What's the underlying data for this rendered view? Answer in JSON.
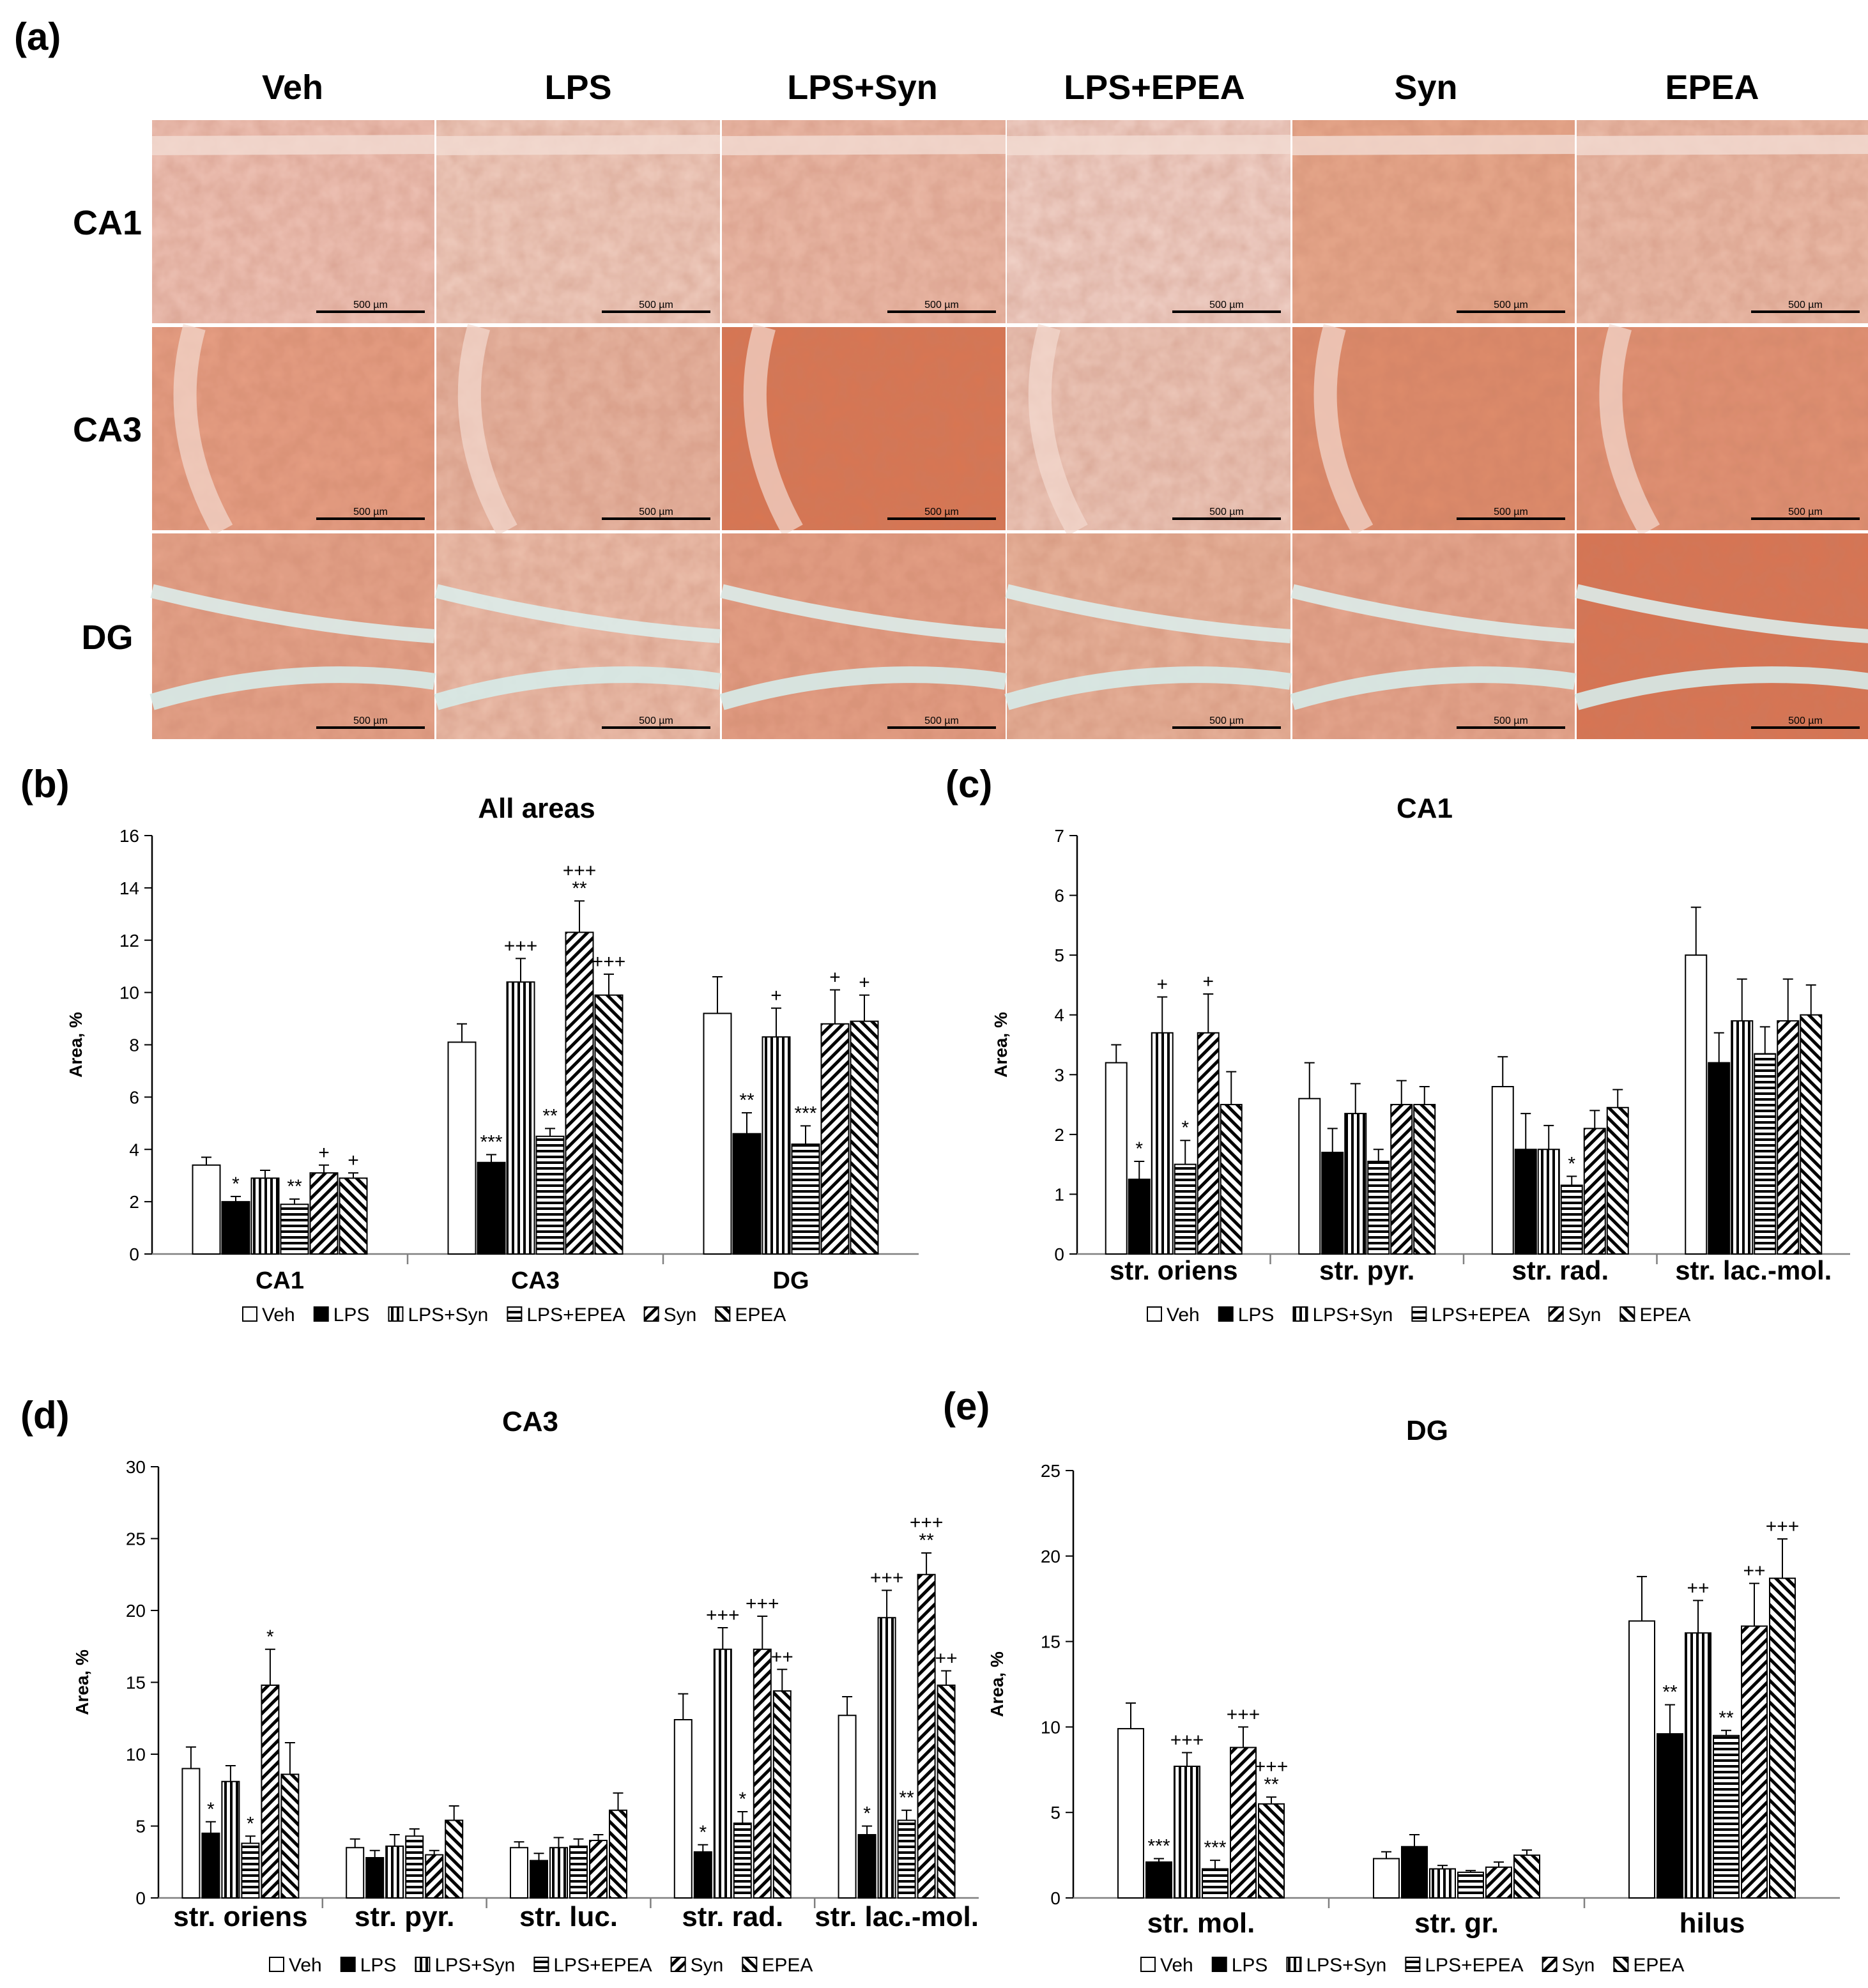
{
  "panel_a": {
    "label": "(a)",
    "columns": [
      "Veh",
      "LPS",
      "LPS+Syn",
      "LPS+EPEA",
      "Syn",
      "EPEA"
    ],
    "rows": [
      "CA1",
      "CA3",
      "DG"
    ],
    "scale_bar": "500 µm",
    "tissue_colors": {
      "CA1": [
        "#efc3b6",
        "#f0cdbf",
        "#ecbba9",
        "#f1d2c8",
        "#e8a98d",
        "#ecbdaa"
      ],
      "CA3": [
        "#e79f84",
        "#e8b6a2",
        "#d97652",
        "#edc8ba",
        "#df8c6b",
        "#e29274"
      ],
      "DG": [
        "#e6a48b",
        "#edc0ad",
        "#e5a086",
        "#e8b39b",
        "#e6a78f",
        "#d97452"
      ]
    }
  },
  "legend": [
    "Veh",
    "LPS",
    "LPS+Syn",
    "LPS+EPEA",
    "Syn",
    "EPEA"
  ],
  "colors": {
    "ink": "#000000",
    "axis": "#808080",
    "white": "#ffffff"
  },
  "chart_data": [
    {
      "panel": "(b)",
      "type": "bar",
      "title": "All areas",
      "ylabel": "Area, %",
      "ylim": [
        0,
        16
      ],
      "yticks": [
        0,
        2,
        4,
        6,
        8,
        10,
        12,
        14,
        16
      ],
      "categories": [
        "CA1",
        "CA3",
        "DG"
      ],
      "series": [
        {
          "name": "Veh",
          "values": [
            3.4,
            8.1,
            9.2
          ],
          "errors": [
            0.3,
            0.7,
            1.4
          ]
        },
        {
          "name": "LPS",
          "values": [
            2.0,
            3.5,
            4.6
          ],
          "errors": [
            0.2,
            0.3,
            0.8
          ]
        },
        {
          "name": "LPS+Syn",
          "values": [
            2.9,
            10.4,
            8.3
          ],
          "errors": [
            0.3,
            0.9,
            1.1
          ]
        },
        {
          "name": "LPS+EPEA",
          "values": [
            1.9,
            4.5,
            4.2
          ],
          "errors": [
            0.2,
            0.3,
            0.7
          ]
        },
        {
          "name": "Syn",
          "values": [
            3.1,
            12.3,
            8.8
          ],
          "errors": [
            0.3,
            1.2,
            1.3
          ]
        },
        {
          "name": "EPEA",
          "values": [
            2.9,
            9.9,
            8.9
          ],
          "errors": [
            0.2,
            0.8,
            1.0
          ]
        }
      ],
      "annotations": [
        [
          [
            "",
            "*",
            "",
            "**",
            "+",
            "+"
          ],
          [
            "",
            "***",
            "+++",
            "**",
            "+++|**",
            "+++"
          ],
          [
            "",
            "**",
            "+",
            "***",
            "+",
            "+"
          ]
        ]
      ]
    },
    {
      "panel": "(c)",
      "type": "bar",
      "title": "CA1",
      "ylabel": "Area, %",
      "ylim": [
        0,
        7
      ],
      "yticks": [
        0,
        1,
        2,
        3,
        4,
        5,
        6,
        7
      ],
      "categories": [
        "str. oriens",
        "str. pyr.",
        "str. rad.",
        "str. lac.-mol."
      ],
      "series": [
        {
          "name": "Veh",
          "values": [
            3.2,
            2.6,
            2.8,
            5.0
          ],
          "errors": [
            0.3,
            0.6,
            0.5,
            0.8
          ]
        },
        {
          "name": "LPS",
          "values": [
            1.25,
            1.7,
            1.75,
            3.2
          ],
          "errors": [
            0.3,
            0.4,
            0.6,
            0.5
          ]
        },
        {
          "name": "LPS+Syn",
          "values": [
            3.7,
            2.35,
            1.75,
            3.9
          ],
          "errors": [
            0.6,
            0.5,
            0.4,
            0.7
          ]
        },
        {
          "name": "LPS+EPEA",
          "values": [
            1.5,
            1.55,
            1.15,
            3.35
          ],
          "errors": [
            0.4,
            0.2,
            0.15,
            0.45
          ]
        },
        {
          "name": "Syn",
          "values": [
            3.7,
            2.5,
            2.1,
            3.9
          ],
          "errors": [
            0.65,
            0.4,
            0.3,
            0.7
          ]
        },
        {
          "name": "EPEA",
          "values": [
            2.5,
            2.5,
            2.45,
            4.0
          ],
          "errors": [
            0.55,
            0.3,
            0.3,
            0.5
          ]
        }
      ],
      "annotations": [
        [
          [
            "",
            "*",
            "+",
            "*",
            "+",
            ""
          ],
          [
            "",
            "",
            "",
            "",
            "",
            ""
          ],
          [
            "",
            "",
            "",
            "*",
            "",
            ""
          ],
          [
            "",
            "",
            "",
            "",
            "",
            ""
          ]
        ]
      ]
    },
    {
      "panel": "(d)",
      "type": "bar",
      "title": "CA3",
      "ylabel": "Area, %",
      "ylim": [
        0,
        30
      ],
      "yticks": [
        0,
        5,
        10,
        15,
        20,
        25,
        30
      ],
      "categories": [
        "str. oriens",
        "str. pyr.",
        "str. luc.",
        "str. rad.",
        "str. lac.-mol."
      ],
      "series": [
        {
          "name": "Veh",
          "values": [
            9.0,
            3.5,
            3.5,
            12.4,
            12.7
          ],
          "errors": [
            1.5,
            0.6,
            0.4,
            1.8,
            1.3
          ]
        },
        {
          "name": "LPS",
          "values": [
            4.5,
            2.8,
            2.6,
            3.2,
            4.4
          ],
          "errors": [
            0.8,
            0.5,
            0.5,
            0.5,
            0.6
          ]
        },
        {
          "name": "LPS+Syn",
          "values": [
            8.1,
            3.6,
            3.5,
            17.3,
            19.5
          ],
          "errors": [
            1.1,
            0.8,
            0.7,
            1.5,
            1.9
          ]
        },
        {
          "name": "LPS+EPEA",
          "values": [
            3.8,
            4.3,
            3.6,
            5.2,
            5.4
          ],
          "errors": [
            0.5,
            0.5,
            0.5,
            0.8,
            0.7
          ]
        },
        {
          "name": "Syn",
          "values": [
            14.8,
            3.0,
            4.0,
            17.3,
            22.5
          ],
          "errors": [
            2.5,
            0.3,
            0.4,
            2.3,
            1.5
          ]
        },
        {
          "name": "EPEA",
          "values": [
            8.6,
            5.4,
            6.1,
            14.4,
            14.8
          ],
          "errors": [
            2.2,
            1.0,
            1.2,
            1.5,
            1.0
          ]
        }
      ],
      "annotations": [
        [
          [
            "",
            "*",
            "",
            "*",
            "*",
            ""
          ],
          [
            "",
            "",
            "",
            "",
            "",
            ""
          ],
          [
            "",
            "",
            "",
            "",
            "",
            ""
          ],
          [
            "",
            "*",
            "+++",
            "*",
            "+++",
            "++"
          ],
          [
            "",
            "*",
            "+++",
            "**",
            "+++|**",
            "++"
          ]
        ]
      ]
    },
    {
      "panel": "(e)",
      "type": "bar",
      "title": "DG",
      "ylabel": "Area, %",
      "ylim": [
        0,
        25
      ],
      "yticks": [
        0,
        5,
        10,
        15,
        20,
        25
      ],
      "categories": [
        "str. mol.",
        "str. gr.",
        "hilus"
      ],
      "series": [
        {
          "name": "Veh",
          "values": [
            9.9,
            2.3,
            16.2
          ],
          "errors": [
            1.5,
            0.4,
            2.6
          ]
        },
        {
          "name": "LPS",
          "values": [
            2.1,
            3.0,
            9.6
          ],
          "errors": [
            0.2,
            0.7,
            1.7
          ]
        },
        {
          "name": "LPS+Syn",
          "values": [
            7.7,
            1.7,
            15.5
          ],
          "errors": [
            0.8,
            0.2,
            1.9
          ]
        },
        {
          "name": "LPS+EPEA",
          "values": [
            1.7,
            1.5,
            9.5
          ],
          "errors": [
            0.5,
            0.1,
            0.3
          ]
        },
        {
          "name": "Syn",
          "values": [
            8.8,
            1.8,
            15.9
          ],
          "errors": [
            1.2,
            0.3,
            2.5
          ]
        },
        {
          "name": "EPEA",
          "values": [
            5.5,
            2.5,
            18.7
          ],
          "errors": [
            0.4,
            0.3,
            2.3
          ]
        }
      ],
      "annotations": [
        [
          [
            "",
            "***",
            "+++",
            "***",
            "+++",
            "+++|**"
          ],
          [
            "",
            "",
            "",
            "",
            "",
            ""
          ],
          [
            "",
            "**",
            "++",
            "**",
            "++",
            "+++"
          ]
        ]
      ]
    }
  ]
}
